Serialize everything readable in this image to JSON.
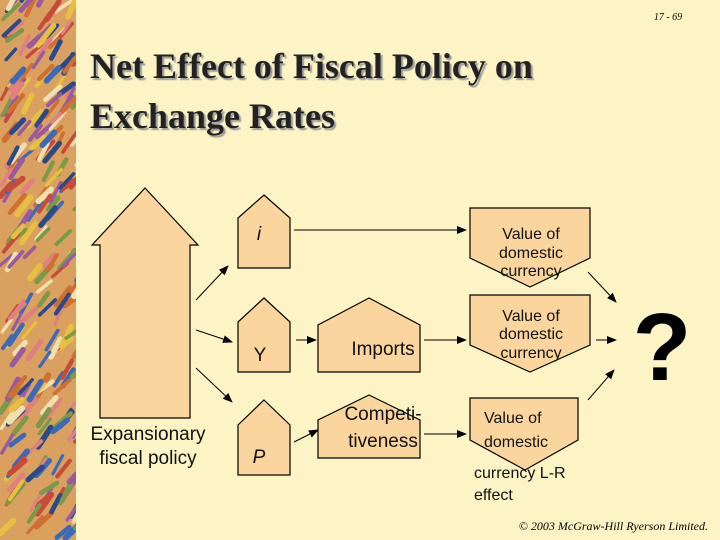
{
  "page_number": "17 - 69",
  "title": [
    "Net Effect of Fiscal Policy on",
    "Exchange Rates"
  ],
  "nodes": [
    {
      "lines": [
        "Expansionary",
        "fiscal policy"
      ]
    },
    {
      "lines": [
        "i"
      ]
    },
    {
      "lines": [
        "Y"
      ]
    },
    {
      "lines": [
        "P"
      ]
    },
    {
      "lines": [
        "Imports"
      ]
    },
    {
      "lines": [
        "Competi-",
        "tiveness"
      ]
    },
    {
      "lines": [
        "Value of",
        "domestic",
        "currency"
      ]
    },
    {
      "lines": [
        "Value of",
        "domestic",
        "currency"
      ]
    },
    {
      "lines": [
        "Value of",
        "domestic",
        "currency L-R",
        "effect"
      ]
    }
  ],
  "question": "?",
  "footer": "© 2003 McGraw-Hill Ryerson Limited."
}
